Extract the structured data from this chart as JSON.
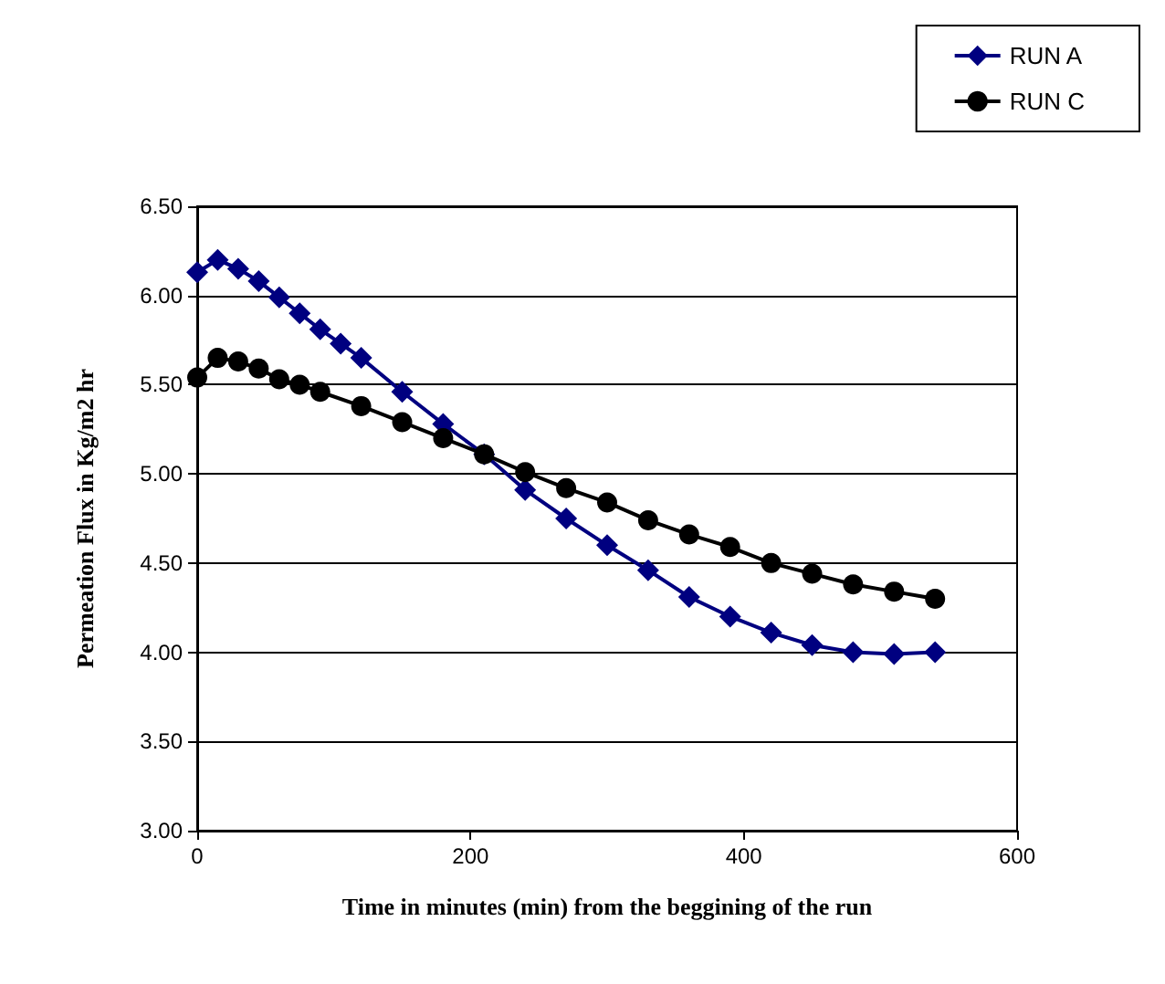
{
  "chart_data": {
    "type": "line",
    "xlabel": "Time in minutes (min) from the beggining of the run",
    "ylabel": "Permeation Flux in Kg/m2 hr",
    "xlim": [
      0,
      600
    ],
    "xticks": [
      0,
      200,
      400,
      600
    ],
    "ylim": [
      3,
      6.5
    ],
    "yticks": [
      {
        "value": 3,
        "label": "3.00"
      },
      {
        "value": 3.5,
        "label": "3.50"
      },
      {
        "value": 4,
        "label": "4.00"
      },
      {
        "value": 4.5,
        "label": "4.50"
      },
      {
        "value": 5,
        "label": "5.00"
      },
      {
        "value": 5.5,
        "label": "5.50"
      },
      {
        "value": 6,
        "label": "6.00"
      },
      {
        "value": 6.5,
        "label": "6.50"
      }
    ],
    "grid": "y",
    "legend": "top right",
    "line_style": "solid",
    "series": [
      {
        "name": "RUN A",
        "color": "#000080",
        "marker": "diamond",
        "x": [
          0,
          15,
          30,
          45,
          60,
          75,
          90,
          105,
          120,
          150,
          180,
          210,
          240,
          270,
          300,
          330,
          360,
          390,
          420,
          450,
          480,
          510,
          540
        ],
        "values": [
          6.13,
          6.2,
          6.15,
          6.08,
          5.99,
          5.9,
          5.81,
          5.73,
          5.65,
          5.46,
          5.28,
          5.11,
          4.91,
          4.75,
          4.6,
          4.46,
          4.31,
          4.2,
          4.11,
          4.04,
          4.0,
          3.99,
          4.0
        ]
      },
      {
        "name": "RUN C",
        "color": "#000000",
        "marker": "circle",
        "x": [
          0,
          15,
          30,
          45,
          60,
          75,
          90,
          120,
          150,
          180,
          210,
          240,
          270,
          300,
          330,
          360,
          390,
          420,
          450,
          480,
          510,
          540
        ],
        "values": [
          5.54,
          5.65,
          5.63,
          5.59,
          5.53,
          5.5,
          5.46,
          5.38,
          5.29,
          5.2,
          5.11,
          5.01,
          4.92,
          4.84,
          4.74,
          4.66,
          4.59,
          4.5,
          4.44,
          4.38,
          4.34,
          4.3
        ]
      }
    ]
  }
}
